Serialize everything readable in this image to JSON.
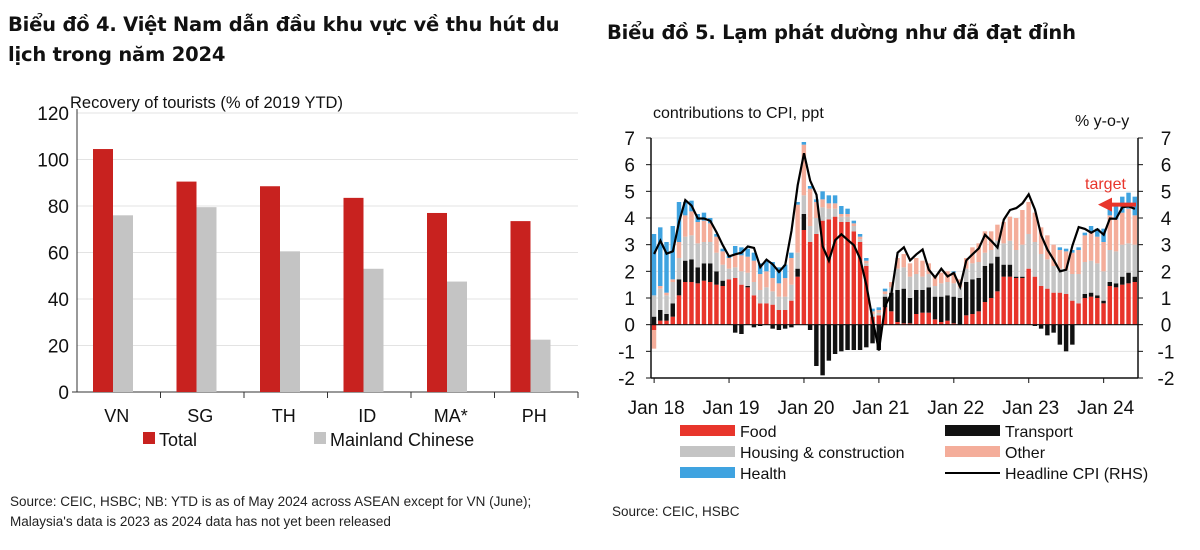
{
  "chart4": {
    "title": "Biểu đồ 4. Việt Nam dẫn đầu khu vực về thu hút du lịch trong năm 2024",
    "source": "Source: CEIC, HSBC; NB: YTD is as of May 2024 across ASEAN except for VN (June); Malaysia's data is 2023 as 2024 data has not yet been released"
  },
  "chart5": {
    "title": "Biểu đồ 5. Lạm phát dường như đã đạt đỉnh",
    "source": "Source: CEIC, HSBC",
    "target_label": "target"
  },
  "chart_data": [
    {
      "type": "bar",
      "title": "Recovery of tourists (% of 2019 YTD)",
      "categories": [
        "VN",
        "SG",
        "TH",
        "ID",
        "MA*",
        "PH"
      ],
      "series": [
        {
          "name": "Total",
          "color": "#c8221f",
          "values": [
            104.5,
            90.5,
            88.5,
            83.5,
            77,
            73.5
          ]
        },
        {
          "name": "Mainland Chinese",
          "color": "#c4c4c4",
          "values": [
            76,
            79.5,
            60.5,
            53,
            47.5,
            22.5
          ]
        }
      ],
      "ylim": [
        0,
        120
      ],
      "yticks": [
        0,
        20,
        40,
        60,
        80,
        100,
        120
      ],
      "grid": true,
      "legend_placement": "bottom"
    },
    {
      "type": "bar",
      "stacked": true,
      "title": "contributions to CPI, ppt",
      "right_axis_label": "% y-o-y",
      "ylim": [
        -2,
        7
      ],
      "yticks": [
        -2,
        -1,
        0,
        1,
        2,
        3,
        4,
        5,
        6,
        7
      ],
      "xticks": [
        "Jan 18",
        "Jan 19",
        "Jan 20",
        "Jan 21",
        "Jan 22",
        "Jan 23",
        "Jan 24"
      ],
      "start": "Jan 2018",
      "months": 78,
      "target": 4.5,
      "legend_placement": "bottom",
      "series": [
        {
          "name": "Food",
          "color": "#e8352b",
          "values": [
            -0.2,
            0.15,
            0.15,
            0.3,
            1.1,
            1.6,
            1.6,
            1.55,
            1.65,
            1.6,
            1.5,
            1.45,
            1.7,
            1.75,
            1.5,
            1.4,
            1.1,
            0.8,
            0.8,
            0.75,
            0.55,
            0.55,
            0.9,
            1.8,
            3.55,
            3.1,
            3.4,
            3.9,
            3.95,
            4.05,
            3.85,
            3.85,
            3.5,
            3.1,
            2.2,
            0.3,
            0.35,
            0.65,
            0.5,
            0.1,
            0.05,
            0.05,
            0.4,
            0.45,
            0.45,
            0.2,
            0.1,
            0.15,
            0.05,
            0.0,
            0.35,
            0.4,
            0.5,
            0.85,
            1.0,
            1.25,
            1.8,
            1.8,
            1.75,
            1.75,
            2.1,
            1.8,
            1.45,
            1.35,
            1.2,
            1.2,
            1.15,
            0.9,
            0.8,
            1.0,
            1.05,
            1.0,
            0.8,
            1.45,
            1.4,
            1.5,
            1.55,
            1.6
          ]
        },
        {
          "name": "Transport",
          "color": "#111111",
          "values": [
            0.3,
            0.4,
            0.25,
            0.5,
            0.6,
            0.8,
            0.85,
            0.6,
            0.65,
            0.7,
            0.5,
            0.2,
            0.0,
            -0.3,
            -0.35,
            0.05,
            -0.1,
            -0.05,
            0.0,
            -0.15,
            -0.2,
            -0.15,
            -0.1,
            0.3,
            0.6,
            -0.2,
            -1.55,
            -1.9,
            -1.35,
            -1.1,
            -1.0,
            -0.95,
            -0.95,
            -0.95,
            -0.85,
            -0.7,
            -0.95,
            0.4,
            0.7,
            1.2,
            1.3,
            0.95,
            0.9,
            0.85,
            0.95,
            0.85,
            0.95,
            0.95,
            1.0,
            1.0,
            1.25,
            1.3,
            1.25,
            1.35,
            1.3,
            1.3,
            0.45,
            0.45,
            0.05,
            0.05,
            0.0,
            -0.05,
            -0.15,
            -0.4,
            -0.3,
            -0.75,
            -1.0,
            -0.75,
            0.0,
            0.15,
            0.15,
            0.1,
            0.1,
            0.15,
            0.15,
            0.3,
            0.4,
            0.2
          ]
        },
        {
          "name": "Housing & construction",
          "color": "#c4c4c4",
          "values": [
            0.8,
            0.8,
            0.7,
            0.8,
            0.8,
            0.9,
            0.9,
            0.9,
            0.8,
            0.8,
            0.7,
            0.6,
            0.4,
            0.4,
            0.5,
            0.5,
            0.5,
            0.5,
            0.6,
            0.5,
            0.5,
            0.5,
            0.6,
            0.6,
            0.7,
            0.6,
            0.6,
            0.5,
            0.4,
            0.3,
            0.2,
            0.2,
            0.2,
            0.1,
            0.1,
            0.1,
            0.1,
            0.1,
            0.2,
            0.8,
            0.8,
            0.8,
            0.6,
            0.5,
            0.5,
            0.4,
            0.5,
            0.5,
            0.5,
            0.4,
            0.5,
            0.6,
            0.6,
            0.5,
            0.5,
            0.6,
            0.8,
            0.9,
            1.0,
            1.2,
            1.3,
            1.3,
            1.2,
            1.1,
            1.0,
            0.9,
            0.9,
            1.0,
            1.1,
            1.2,
            1.2,
            1.2,
            1.1,
            1.2,
            1.2,
            1.2,
            1.1,
            1.2
          ]
        },
        {
          "name": "Other",
          "color": "#f4ad9a",
          "values": [
            -0.7,
            0.1,
            0.1,
            0.1,
            0.6,
            0.8,
            0.9,
            0.8,
            0.8,
            0.7,
            0.6,
            0.5,
            0.4,
            0.5,
            0.6,
            0.6,
            0.8,
            0.6,
            0.6,
            0.5,
            0.5,
            0.7,
            1.0,
            1.8,
            1.9,
            1.4,
            0.6,
            0.3,
            0.2,
            0.2,
            0.1,
            0.1,
            0.1,
            0.1,
            0.1,
            0.1,
            0.1,
            0.1,
            0.2,
            0.4,
            0.5,
            0.5,
            0.6,
            0.6,
            0.4,
            0.4,
            0.4,
            0.4,
            0.4,
            0.3,
            0.4,
            0.6,
            0.7,
            0.8,
            0.7,
            0.6,
            0.8,
            0.9,
            1.2,
            1.3,
            1.2,
            1.1,
            1.0,
            0.9,
            0.8,
            0.7,
            0.7,
            0.8,
            0.9,
            1.0,
            1.1,
            1.0,
            1.1,
            1.3,
            1.2,
            1.2,
            1.3,
            1.1
          ]
        },
        {
          "name": "Health",
          "color": "#3fa3e0",
          "values": [
            2.3,
            2.2,
            1.9,
            2.0,
            1.5,
            0.5,
            0.4,
            0.3,
            0.3,
            0.2,
            0.1,
            0.1,
            0.1,
            0.3,
            0.3,
            0.3,
            0.3,
            0.4,
            0.4,
            0.6,
            0.6,
            0.5,
            0.2,
            0.1,
            0.1,
            0.1,
            0.1,
            0.3,
            0.3,
            0.3,
            0.3,
            0.2,
            0.1,
            0.1,
            0.1,
            0.1,
            0.1,
            0.1,
            0,
            0,
            0,
            0,
            0,
            0,
            0,
            0,
            0,
            0,
            0.05,
            0,
            0,
            0,
            0,
            0,
            0,
            0,
            0,
            0,
            0,
            0,
            0,
            0,
            0,
            0,
            0,
            0.1,
            0.1,
            0.1,
            0.1,
            0.1,
            0.2,
            0.3,
            0.5,
            0.5,
            0.5,
            0.6,
            0.6,
            0.7
          ]
        },
        {
          "name": "Headline CPI (RHS)",
          "type": "line",
          "color": "#000000",
          "values": [
            2.65,
            3.15,
            2.66,
            2.75,
            3.86,
            4.67,
            4.46,
            3.98,
            3.98,
            3.89,
            3.46,
            2.98,
            2.56,
            2.64,
            2.7,
            2.93,
            2.88,
            2.16,
            2.44,
            2.26,
            1.98,
            2.24,
            3.52,
            5.23,
            6.43,
            5.4,
            4.87,
            2.93,
            2.4,
            3.17,
            3.39,
            3.18,
            2.98,
            2.47,
            1.48,
            0.19,
            -0.97,
            0.7,
            1.16,
            2.7,
            2.9,
            2.41,
            2.64,
            2.82,
            2.06,
            1.77,
            2.1,
            1.81,
            1.94,
            1.42,
            2.41,
            2.64,
            2.86,
            3.37,
            3.14,
            2.89,
            3.94,
            4.3,
            4.37,
            4.55,
            4.89,
            4.31,
            3.35,
            2.81,
            2.43,
            2.0,
            2.06,
            2.96,
            3.66,
            3.59,
            3.45,
            3.58,
            3.37,
            3.98,
            3.97,
            4.4,
            4.44,
            4.34
          ]
        }
      ]
    }
  ]
}
